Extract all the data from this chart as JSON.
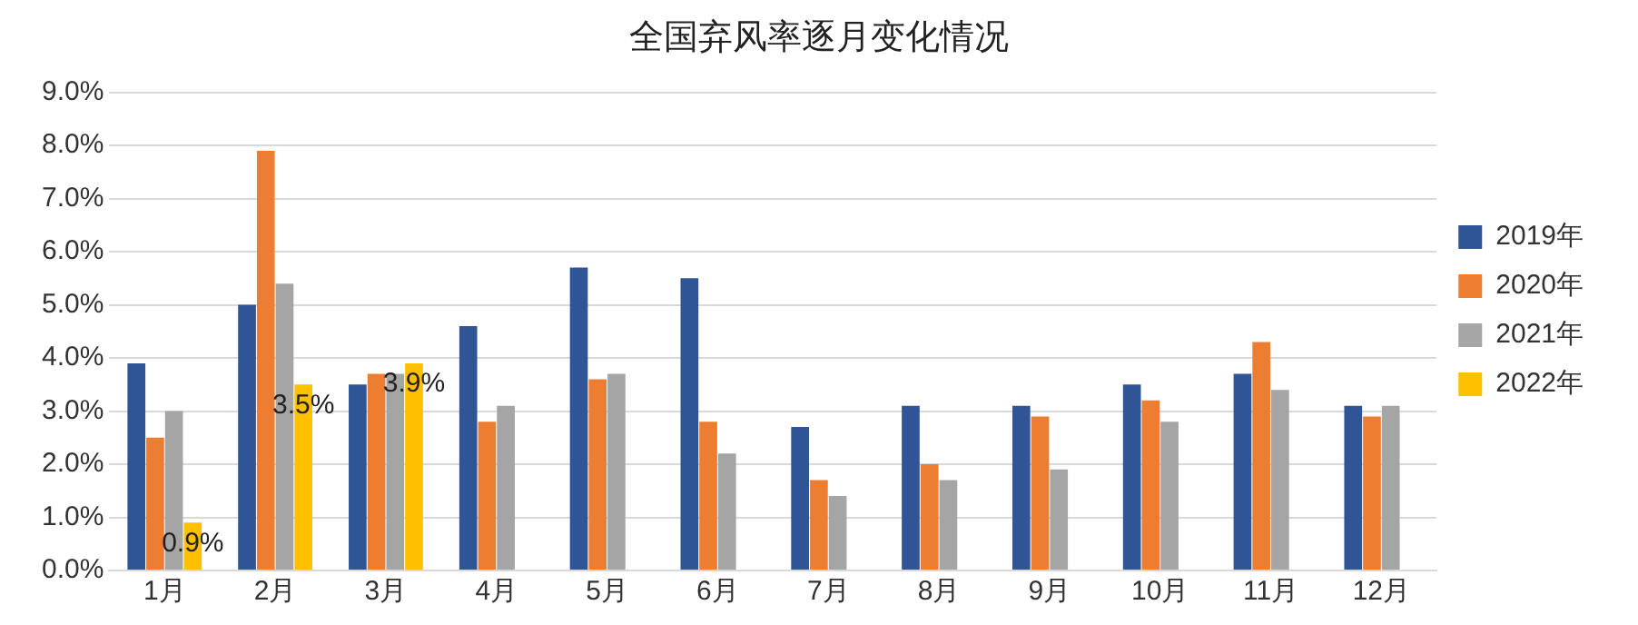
{
  "chart_data": {
    "type": "bar",
    "title": "全国弃风率逐月变化情况",
    "categories": [
      "1月",
      "2月",
      "3月",
      "4月",
      "5月",
      "6月",
      "7月",
      "8月",
      "9月",
      "10月",
      "11月",
      "12月"
    ],
    "series": [
      {
        "name": "2019年",
        "color": "#2f5597",
        "values": [
          3.9,
          5.0,
          3.5,
          4.6,
          5.7,
          5.5,
          2.7,
          3.1,
          3.1,
          3.5,
          3.7,
          3.1
        ]
      },
      {
        "name": "2020年",
        "color": "#ed7d31",
        "values": [
          2.5,
          7.9,
          3.7,
          2.8,
          3.6,
          2.8,
          1.7,
          2.0,
          2.9,
          3.2,
          4.3,
          2.9
        ]
      },
      {
        "name": "2021年",
        "color": "#a5a5a5",
        "values": [
          3.0,
          5.4,
          3.7,
          3.1,
          3.7,
          2.2,
          1.4,
          1.7,
          1.9,
          2.8,
          3.4,
          3.1
        ]
      },
      {
        "name": "2022年",
        "color": "#ffc000",
        "values": [
          0.9,
          3.5,
          3.9,
          null,
          null,
          null,
          null,
          null,
          null,
          null,
          null,
          null
        ],
        "value_labels": [
          "0.9%",
          "3.5%",
          "3.9%",
          null,
          null,
          null,
          null,
          null,
          null,
          null,
          null,
          null
        ]
      }
    ],
    "ylim": [
      0,
      9
    ],
    "yticks": [
      {
        "value": 0,
        "label": "0.0%"
      },
      {
        "value": 1,
        "label": "1.0%"
      },
      {
        "value": 2,
        "label": "2.0%"
      },
      {
        "value": 3,
        "label": "3.0%"
      },
      {
        "value": 4,
        "label": "4.0%"
      },
      {
        "value": 5,
        "label": "5.0%"
      },
      {
        "value": 6,
        "label": "6.0%"
      },
      {
        "value": 7,
        "label": "7.0%"
      },
      {
        "value": 8,
        "label": "8.0%"
      },
      {
        "value": 9,
        "label": "9.0%"
      }
    ],
    "grid": "y",
    "legend": "right"
  }
}
